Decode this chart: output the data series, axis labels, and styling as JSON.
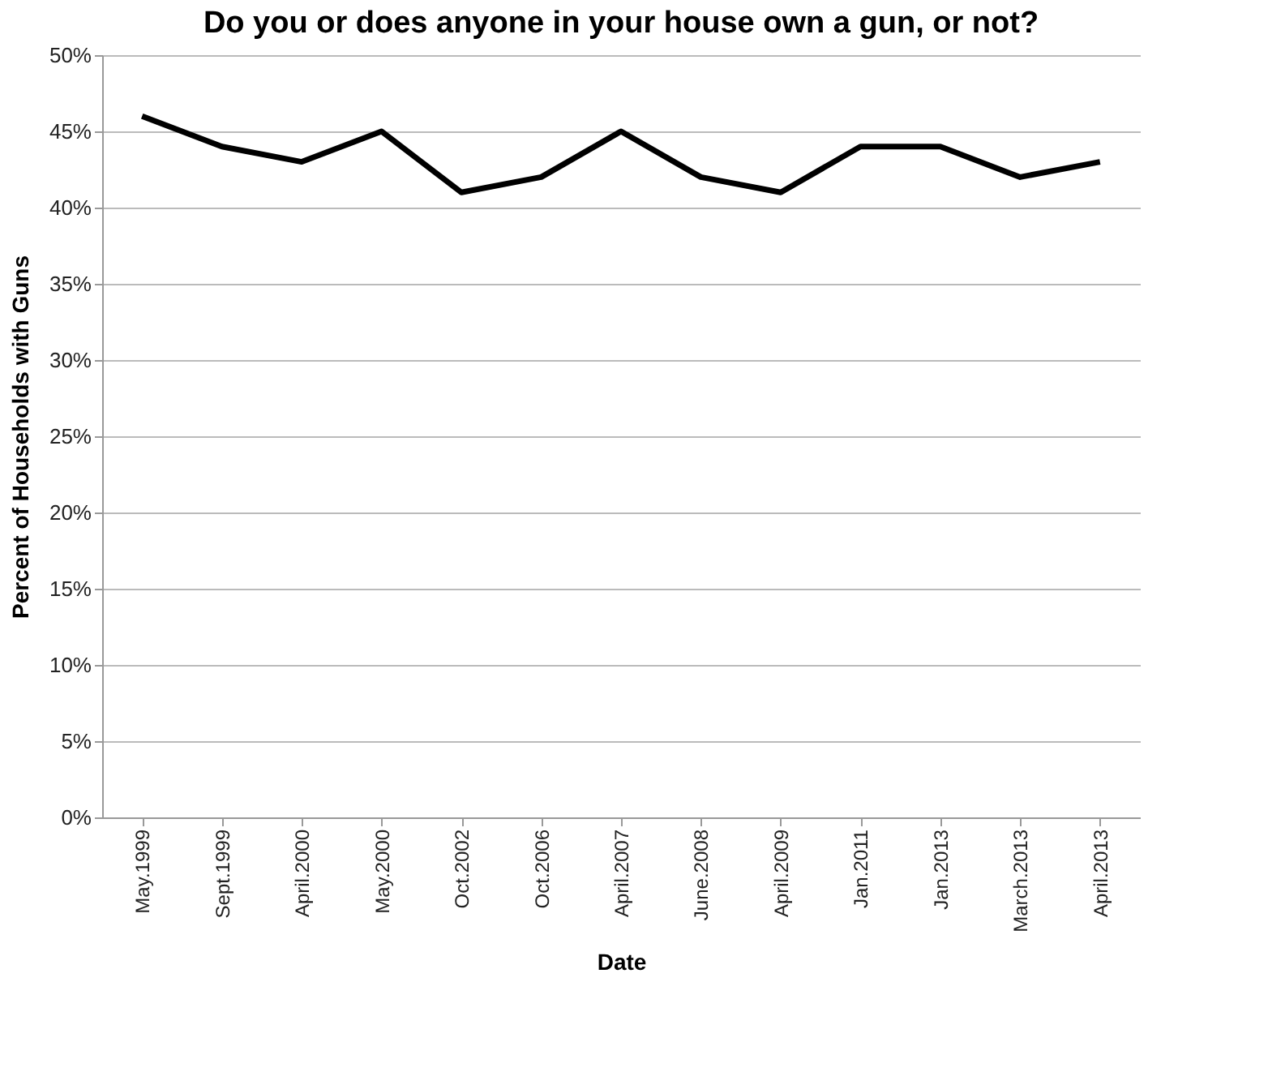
{
  "chart_data": {
    "type": "line",
    "title": "Do you or does anyone in your house own a gun, or not?",
    "xlabel": "Date",
    "ylabel": "Percent of Households with Guns",
    "categories": [
      "May.1999",
      "Sept.1999",
      "April.2000",
      "May.2000",
      "Oct.2002",
      "Oct.2006",
      "April.2007",
      "June.2008",
      "April.2009",
      "Jan.2011",
      "Jan.2013",
      "March.2013",
      "April.2013"
    ],
    "series": [
      {
        "color": "#000000",
        "values": [
          46,
          44,
          43,
          45,
          41,
          42,
          45,
          42,
          41,
          44,
          44,
          42,
          43
        ]
      }
    ],
    "ylim": [
      0,
      50
    ],
    "yticks": [
      {
        "value": 0,
        "label": "0%"
      },
      {
        "value": 5,
        "label": "5%"
      },
      {
        "value": 10,
        "label": "10%"
      },
      {
        "value": 15,
        "label": "15%"
      },
      {
        "value": 20,
        "label": "20%"
      },
      {
        "value": 25,
        "label": "25%"
      },
      {
        "value": 30,
        "label": "30%"
      },
      {
        "value": 35,
        "label": "35%"
      },
      {
        "value": 40,
        "label": "40%"
      },
      {
        "value": 45,
        "label": "45%"
      },
      {
        "value": 50,
        "label": "50%"
      }
    ],
    "grid": "y",
    "marker": "none",
    "line_style": "solid"
  }
}
